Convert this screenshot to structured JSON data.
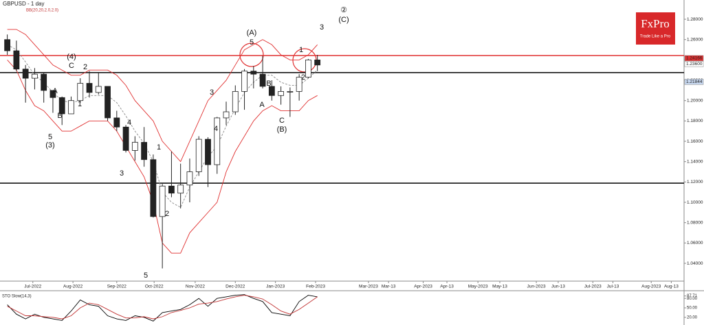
{
  "chart_data": {
    "type": "candlestick",
    "title": "GBPUSD - 1 day",
    "subtitle": "BB(20,20,2.0,2.0)",
    "logo": {
      "name": "FxPro",
      "tagline": "Trade Like a Pro"
    },
    "x": [
      4,
      9,
      14,
      19,
      24,
      29,
      34,
      39,
      44,
      49,
      54,
      59,
      64,
      69,
      74,
      79,
      84,
      89,
      94,
      99,
      104,
      109,
      114,
      119,
      124,
      129,
      134,
      139,
      144,
      149,
      154,
      159,
      164,
      169,
      174
    ],
    "xlim": [
      0,
      375
    ],
    "xticks": [
      {
        "value": 18,
        "label": "Jul-2022"
      },
      {
        "value": 40,
        "label": "Aug-2022"
      },
      {
        "value": 64,
        "label": "Sep-2022"
      },
      {
        "value": 84.5,
        "label": "Oct-2022"
      },
      {
        "value": 107,
        "label": "Nov-2022"
      },
      {
        "value": 129,
        "label": "Dec-2022"
      },
      {
        "value": 151,
        "label": "Jan-2023"
      },
      {
        "value": 173,
        "label": "Feb-2023"
      },
      {
        "value": 202,
        "label": "Mar-2023"
      },
      {
        "value": 213,
        "label": "Mar-13"
      },
      {
        "value": 232,
        "label": "Apr-2023"
      },
      {
        "value": 245,
        "label": "Apr-13"
      },
      {
        "value": 262,
        "label": "May-2023"
      },
      {
        "value": 274,
        "label": "May-13"
      },
      {
        "value": 294,
        "label": "Jun-2023"
      },
      {
        "value": 306,
        "label": "Jun-13"
      },
      {
        "value": 325,
        "label": "Jul-2023"
      },
      {
        "value": 336,
        "label": "Jul-13"
      },
      {
        "value": 357,
        "label": "Aug-2023"
      },
      {
        "value": 368,
        "label": "Aug-13"
      }
    ],
    "ylim": [
      1.0225,
      1.2969
    ],
    "yticks": [
      {
        "value": 1.04,
        "label": "1.04000"
      },
      {
        "value": 1.06,
        "label": "1.06000"
      },
      {
        "value": 1.08,
        "label": "1.08000"
      },
      {
        "value": 1.1,
        "label": "1.10000"
      },
      {
        "value": 1.12,
        "label": "1.12000"
      },
      {
        "value": 1.14,
        "label": "1.14000"
      },
      {
        "value": 1.16,
        "label": "1.16000"
      },
      {
        "value": 1.18,
        "label": "1.18000"
      },
      {
        "value": 1.2,
        "label": "1.20000"
      },
      {
        "value": 1.22,
        "label": "1.22000"
      },
      {
        "value": 1.24,
        "label": "1.24000"
      },
      {
        "value": 1.26,
        "label": "1.26000"
      },
      {
        "value": 1.28,
        "label": "1.28000"
      }
    ],
    "open": [
      1.26,
      1.249,
      1.231,
      1.222,
      1.226,
      1.21,
      1.203,
      1.187,
      1.2,
      1.217,
      1.208,
      1.214,
      1.183,
      1.174,
      1.151,
      1.159,
      1.142,
      1.086,
      1.116,
      1.109,
      1.117,
      1.13,
      1.162,
      1.137,
      1.183,
      1.189,
      1.209,
      1.229,
      1.226,
      1.214,
      1.205,
      1.209,
      1.209,
      1.223,
      1.24
    ],
    "high": [
      1.265,
      1.259,
      1.235,
      1.232,
      1.228,
      1.21,
      1.204,
      1.204,
      1.222,
      1.229,
      1.227,
      1.214,
      1.19,
      1.176,
      1.165,
      1.174,
      1.147,
      1.118,
      1.15,
      1.138,
      1.143,
      1.165,
      1.164,
      1.184,
      1.199,
      1.215,
      1.231,
      1.234,
      1.244,
      1.22,
      1.214,
      1.213,
      1.226,
      1.241,
      1.245
    ],
    "low": [
      1.245,
      1.229,
      1.198,
      1.211,
      1.198,
      1.188,
      1.176,
      1.187,
      1.198,
      1.203,
      1.206,
      1.18,
      1.17,
      1.149,
      1.141,
      1.135,
      1.085,
      1.035,
      1.105,
      1.094,
      1.1,
      1.126,
      1.115,
      1.128,
      1.176,
      1.186,
      1.191,
      1.212,
      1.212,
      1.2,
      1.196,
      1.184,
      1.2,
      1.222,
      1.229
    ],
    "close": [
      1.249,
      1.231,
      1.222,
      1.226,
      1.21,
      1.203,
      1.187,
      1.2,
      1.217,
      1.208,
      1.214,
      1.183,
      1.174,
      1.151,
      1.159,
      1.142,
      1.086,
      1.116,
      1.109,
      1.117,
      1.13,
      1.162,
      1.137,
      1.183,
      1.189,
      1.209,
      1.229,
      1.226,
      1.214,
      1.205,
      1.209,
      1.209,
      1.223,
      1.24,
      1.235
    ],
    "bands": [
      {
        "color": "#e03030",
        "values": [
          1.27,
          1.27,
          1.265,
          1.255,
          1.245,
          1.235,
          1.23,
          1.225,
          1.225,
          1.23,
          1.23,
          1.23,
          1.225,
          1.215,
          1.2,
          1.19,
          1.18,
          1.16,
          1.15,
          1.14,
          1.16,
          1.18,
          1.2,
          1.21,
          1.22,
          1.235,
          1.25,
          1.255,
          1.26,
          1.255,
          1.245,
          1.24,
          1.24,
          1.245,
          1.255
        ]
      },
      {
        "color": "#888888",
        "dashed": true,
        "values": [
          1.255,
          1.25,
          1.238,
          1.225,
          1.218,
          1.208,
          1.2,
          1.198,
          1.2,
          1.205,
          1.205,
          1.205,
          1.198,
          1.185,
          1.17,
          1.158,
          1.14,
          1.11,
          1.1,
          1.095,
          1.115,
          1.13,
          1.145,
          1.155,
          1.175,
          1.192,
          1.208,
          1.218,
          1.225,
          1.225,
          1.218,
          1.215,
          1.215,
          1.222,
          1.23
        ]
      },
      {
        "color": "#e03030",
        "values": [
          1.24,
          1.23,
          1.21,
          1.195,
          1.19,
          1.18,
          1.17,
          1.17,
          1.175,
          1.18,
          1.18,
          1.18,
          1.17,
          1.155,
          1.14,
          1.125,
          1.1,
          1.06,
          1.05,
          1.05,
          1.07,
          1.08,
          1.09,
          1.1,
          1.13,
          1.15,
          1.165,
          1.18,
          1.19,
          1.195,
          1.19,
          1.19,
          1.19,
          1.2,
          1.205
        ]
      }
    ],
    "levels": [
      {
        "value": 1.2443,
        "color": "#e03030"
      },
      {
        "value": 1.2275,
        "color": "#000000"
      },
      {
        "value": 1.1188,
        "color": "#000000"
      }
    ],
    "price_tags": [
      {
        "value": 1.24166,
        "label": "1.24166",
        "color": "#e03030"
      },
      {
        "value": 1.236,
        "label": "1.23600",
        "color": "#ffffff"
      },
      {
        "value": 1.21844,
        "label": "1.21844",
        "color": "#c8d8f0"
      }
    ],
    "annotations": [
      "(A)",
      "5",
      "1",
      "2",
      "C",
      "(B)",
      "A",
      "B",
      "3",
      "4",
      "1",
      "2",
      "4",
      "3",
      "5",
      "(4)",
      "C",
      "2",
      "1",
      "A",
      "B",
      "5",
      "(3)",
      "②",
      "(C)",
      "3"
    ],
    "oscillator": {
      "title": "STO Slow(14,3)",
      "ylim": [
        0,
        100
      ],
      "yticks": [
        {
          "value": 87.71,
          "label": "87.71"
        },
        {
          "value": 80,
          "label": "80.00"
        },
        {
          "value": 50,
          "label": "50.00"
        },
        {
          "value": 20,
          "label": "20.00"
        }
      ],
      "series": [
        {
          "color": "#000000",
          "values": [
            60,
            30,
            15,
            30,
            20,
            15,
            10,
            40,
            75,
            60,
            55,
            25,
            15,
            10,
            25,
            20,
            8,
            35,
            40,
            45,
            60,
            80,
            55,
            80,
            85,
            90,
            92,
            80,
            70,
            35,
            30,
            25,
            70,
            90,
            85
          ]
        },
        {
          "color": "#c03030",
          "values": [
            55,
            40,
            25,
            25,
            22,
            20,
            15,
            25,
            50,
            65,
            60,
            45,
            30,
            18,
            18,
            22,
            15,
            22,
            35,
            42,
            50,
            62,
            65,
            70,
            78,
            85,
            90,
            85,
            78,
            60,
            40,
            30,
            45,
            65,
            85
          ]
        }
      ]
    }
  }
}
